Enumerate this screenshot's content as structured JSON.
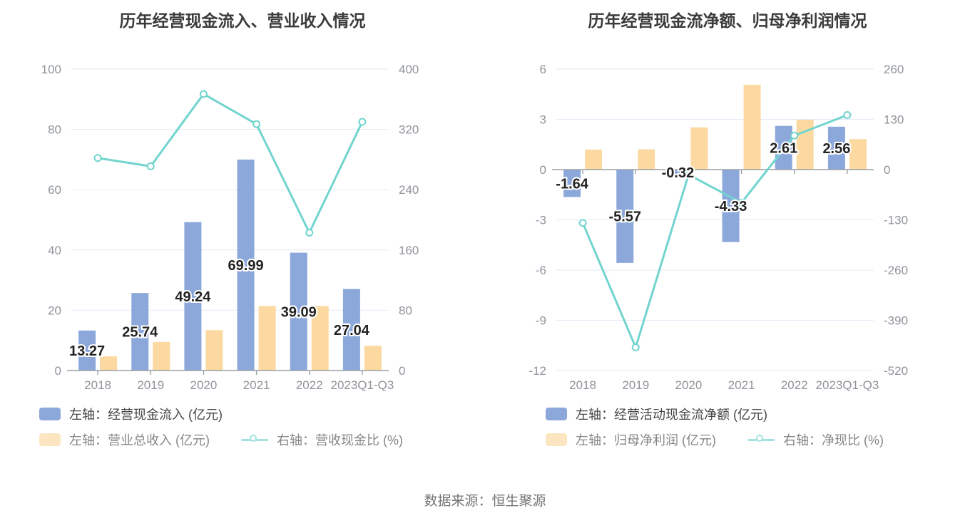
{
  "page": {
    "source": "数据来源：恒生聚源"
  },
  "chart_data": [
    {
      "type": "bar+line",
      "title": "历年经营现金流入、营业收入情况",
      "categories": [
        "2018",
        "2019",
        "2020",
        "2021",
        "2022",
        "2023Q1-Q3"
      ],
      "series": [
        {
          "name": "左轴：经营现金流入 (亿元)",
          "type": "bar",
          "axis": "left",
          "color": "#8CA8DB",
          "values": [
            13.27,
            25.74,
            49.24,
            69.99,
            39.09,
            27.04
          ],
          "labels": [
            "13.27",
            "25.74",
            "49.24",
            "69.99",
            "39.09",
            "27.04"
          ]
        },
        {
          "name": "左轴：营业总收入 (亿元)",
          "type": "bar",
          "axis": "left",
          "color": "#FBD9A0",
          "values": [
            4.7,
            9.5,
            13.4,
            21.4,
            21.4,
            8.2
          ]
        },
        {
          "name": "右轴：营收现金比 (%)",
          "type": "line",
          "axis": "right",
          "color": "#72D4CE",
          "values": [
            282,
            271,
            367,
            327,
            183,
            330
          ]
        }
      ],
      "left_axis": {
        "ticks": [
          0,
          20,
          40,
          60,
          80,
          100
        ]
      },
      "right_axis": {
        "ticks": [
          0,
          80,
          160,
          240,
          320,
          400
        ]
      },
      "grid": true,
      "legend_position": "bottom"
    },
    {
      "type": "bar+line",
      "title": "历年经营现金流净额、归母净利润情况",
      "categories": [
        "2018",
        "2019",
        "2020",
        "2021",
        "2022",
        "2023Q1-Q3"
      ],
      "series": [
        {
          "name": "左轴：经营活动现金流净额 (亿元)",
          "type": "bar",
          "axis": "left",
          "color": "#8CA8DB",
          "values": [
            -1.64,
            -5.57,
            -0.32,
            -4.33,
            2.61,
            2.56
          ],
          "labels": [
            "-1.64",
            "-5.57",
            "-0.32",
            "-4.33",
            "2.61",
            "2.56"
          ]
        },
        {
          "name": "左轴：归母净利润 (亿元)",
          "type": "bar",
          "axis": "left",
          "color": "#FBD9A0",
          "values": [
            1.19,
            1.21,
            2.52,
            5.06,
            2.98,
            1.82
          ]
        },
        {
          "name": "右轴：净现比 (%)",
          "type": "line",
          "axis": "right",
          "color": "#72D4CE",
          "values": [
            -138,
            -460,
            -13,
            -86,
            88,
            141
          ]
        }
      ],
      "left_axis": {
        "ticks": [
          -12,
          -9,
          -6,
          -3,
          0,
          3,
          6
        ]
      },
      "right_axis": {
        "ticks": [
          -520,
          -390,
          -260,
          -130,
          0,
          130,
          260
        ]
      },
      "grid": true,
      "legend_position": "bottom"
    }
  ],
  "style": {
    "grid_color": "#E5EAF6",
    "axis_line_color": "#9AA0A6",
    "tick_label_color": "#8F939A",
    "data_label_color": "#222222",
    "title_color": "#3B3B3B"
  }
}
